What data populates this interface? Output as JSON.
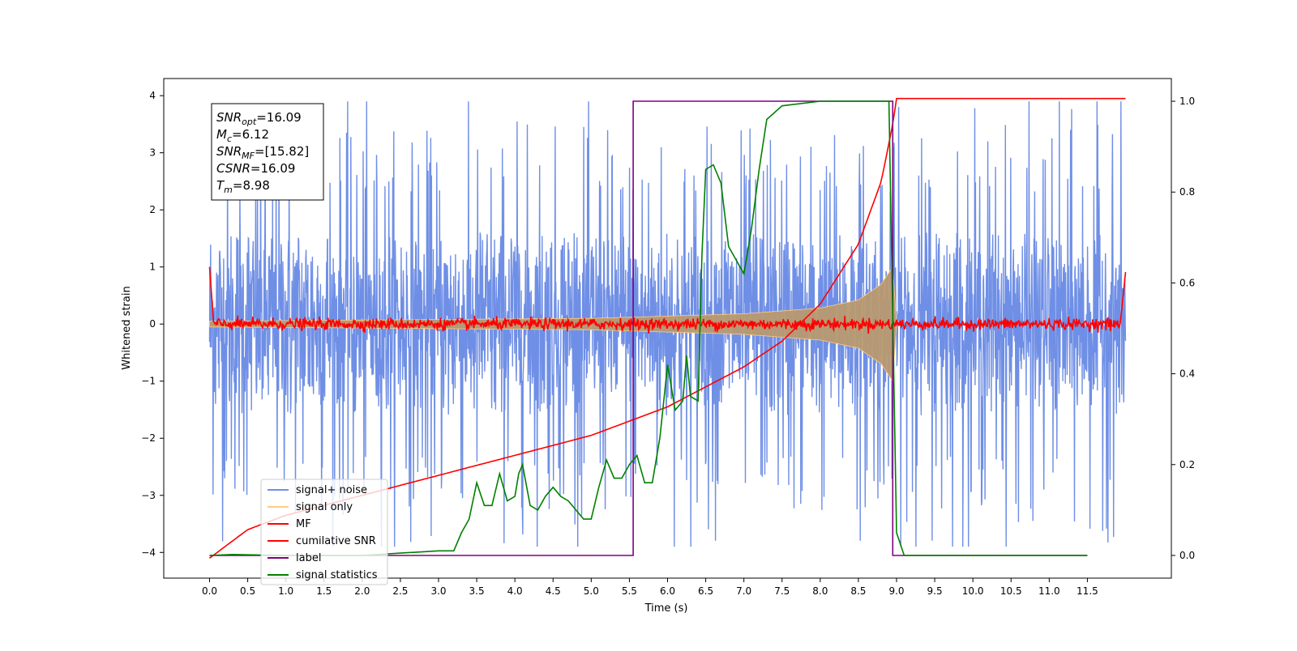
{
  "chart_data": {
    "type": "line",
    "xlabel": "Time (s)",
    "ylabel": "Whitened strain",
    "xlim": [
      -0.6,
      12.6
    ],
    "ylim": [
      -4.45,
      4.3
    ],
    "y2lim": [
      -0.05,
      1.05
    ],
    "xticks": [
      0.0,
      0.5,
      1.0,
      1.5,
      2.0,
      2.5,
      3.0,
      3.5,
      4.0,
      4.5,
      5.0,
      5.5,
      6.0,
      6.5,
      7.0,
      7.5,
      8.0,
      8.5,
      9.0,
      9.5,
      10.0,
      10.5,
      11.0,
      11.5
    ],
    "xtick_labels": [
      "0.0",
      "0.5",
      "1.0",
      "1.5",
      "2.0",
      "2.5",
      "3.0",
      "3.5",
      "4.0",
      "4.5",
      "5.0",
      "5.5",
      "6.0",
      "6.5",
      "7.0",
      "7.5",
      "8.0",
      "8.5",
      "9.0",
      "9.5",
      "10.0",
      "10.5",
      "11.0",
      "11.5"
    ],
    "yticks": [
      -4,
      -3,
      -2,
      -1,
      0,
      1,
      2,
      3,
      4
    ],
    "ytick_labels": [
      "−4",
      "−3",
      "−2",
      "−1",
      "0",
      "1",
      "2",
      "3",
      "4"
    ],
    "y2ticks": [
      0.0,
      0.2,
      0.4,
      0.6,
      0.8,
      1.0
    ],
    "y2tick_labels": [
      "0.0",
      "0.2",
      "0.4",
      "0.6",
      "0.8",
      "1.0"
    ],
    "grid": false,
    "legend_position": "lower-left",
    "noise_band": {
      "x": [
        0.0,
        12.0
      ],
      "y_min": -3.9,
      "y_max": 3.9
    },
    "signal_envelope": {
      "x": [
        0.0,
        5.0,
        7.0,
        8.0,
        8.5,
        8.8,
        8.95,
        9.0
      ],
      "amplitude": [
        0.05,
        0.1,
        0.18,
        0.28,
        0.42,
        0.7,
        1.0,
        0.0
      ]
    },
    "cumulative_snr": {
      "x": [
        0.0,
        0.5,
        1.0,
        2.0,
        3.0,
        4.0,
        5.0,
        6.0,
        7.0,
        7.5,
        8.0,
        8.5,
        8.8,
        8.95,
        9.0,
        12.0
      ],
      "y": [
        -4.1,
        -3.6,
        -3.35,
        -3.0,
        -2.65,
        -2.3,
        -1.95,
        -1.45,
        -0.75,
        -0.3,
        0.35,
        1.4,
        2.5,
        3.5,
        3.95,
        3.95
      ]
    },
    "series": [
      {
        "name": "signal+ noise",
        "color": "#6f8fe6",
        "style": "noise"
      },
      {
        "name": "signal only",
        "color": "#ffcc80",
        "style": "envelope"
      },
      {
        "name": "MF",
        "color": "#ff0000",
        "style": "mf"
      },
      {
        "name": "cumilative SNR",
        "color": "#ff0000",
        "style": "cumulative",
        "axis": "y1"
      },
      {
        "name": "label",
        "color": "#800080",
        "style": "step",
        "axis": "y2",
        "x": [
          0.0,
          5.55,
          5.55,
          8.95,
          8.95,
          11.5
        ],
        "y": [
          0.0,
          0.0,
          1.0,
          1.0,
          0.0,
          0.0
        ]
      },
      {
        "name": "signal statistics",
        "color": "#008000",
        "style": "line",
        "axis": "y2",
        "x": [
          0.0,
          0.3,
          1.0,
          2.0,
          2.5,
          3.0,
          3.2,
          3.3,
          3.4,
          3.5,
          3.6,
          3.7,
          3.8,
          3.9,
          4.0,
          4.05,
          4.1,
          4.2,
          4.3,
          4.4,
          4.5,
          4.6,
          4.7,
          4.8,
          4.9,
          5.0,
          5.1,
          5.2,
          5.3,
          5.4,
          5.5,
          5.6,
          5.7,
          5.8,
          5.9,
          6.0,
          6.1,
          6.2,
          6.25,
          6.3,
          6.4,
          6.45,
          6.5,
          6.6,
          6.7,
          6.8,
          6.9,
          7.0,
          7.1,
          7.2,
          7.3,
          7.5,
          8.0,
          8.5,
          8.9,
          9.0,
          9.1,
          9.3,
          11.5
        ],
        "y": [
          0.0,
          0.002,
          0.0,
          0.0,
          0.005,
          0.01,
          0.01,
          0.05,
          0.08,
          0.16,
          0.11,
          0.11,
          0.18,
          0.12,
          0.13,
          0.18,
          0.2,
          0.11,
          0.1,
          0.13,
          0.15,
          0.13,
          0.12,
          0.1,
          0.08,
          0.08,
          0.15,
          0.21,
          0.17,
          0.17,
          0.2,
          0.22,
          0.16,
          0.16,
          0.26,
          0.42,
          0.32,
          0.34,
          0.44,
          0.35,
          0.34,
          0.66,
          0.85,
          0.86,
          0.82,
          0.68,
          0.65,
          0.62,
          0.72,
          0.85,
          0.96,
          0.99,
          1.0,
          1.0,
          1.0,
          0.05,
          0.0,
          0.0,
          0.0
        ]
      }
    ],
    "annotation": {
      "lines": [
        {
          "name": "SNR",
          "sub": "opt",
          "value": "=16.09"
        },
        {
          "name": "M",
          "sub": "c",
          "value": "=6.12"
        },
        {
          "name": "SNR",
          "sub": "MF",
          "value": "=[15.82]"
        },
        {
          "name": "CSNR",
          "sub": "",
          "value": "=16.09"
        },
        {
          "name": "T",
          "sub": "m",
          "value": "=8.98"
        }
      ]
    }
  }
}
